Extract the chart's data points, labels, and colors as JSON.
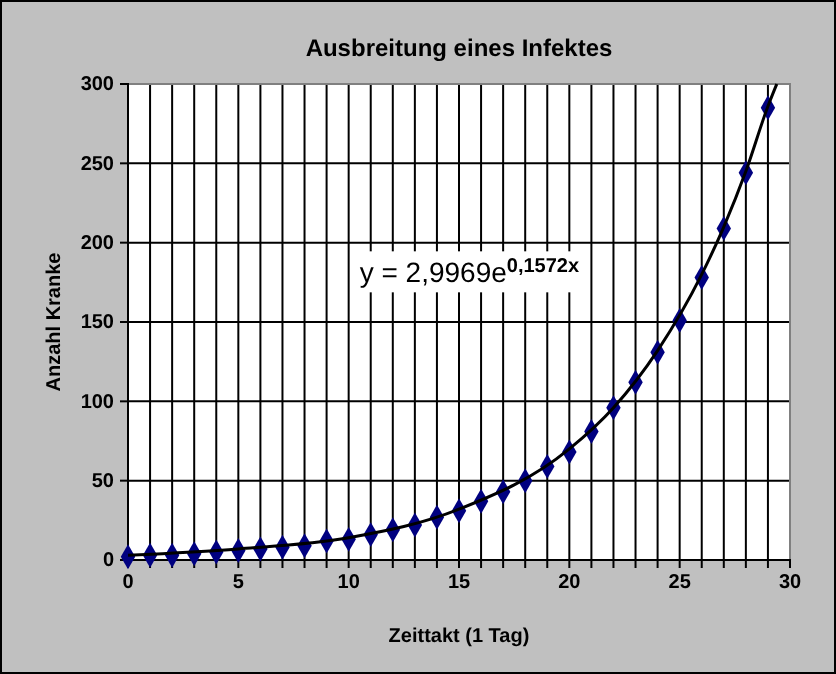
{
  "chart_data": {
    "type": "scatter",
    "title": "Ausbreitung eines Infektes",
    "xlabel": "Zeittakt (1 Tag)",
    "ylabel": "Anzahl Kranke",
    "series": [
      {
        "color": "#000080",
        "marker": "diamond",
        "x": [
          0,
          1,
          2,
          3,
          4,
          5,
          6,
          7,
          8,
          9,
          10,
          11,
          12,
          13,
          14,
          15,
          16,
          17,
          18,
          19,
          20,
          21,
          22,
          23,
          24,
          25,
          26,
          27,
          28,
          29
        ],
        "values": [
          2,
          3,
          3,
          4,
          5,
          6,
          7,
          8,
          9,
          12,
          13,
          16,
          19,
          22,
          27,
          31,
          37,
          43,
          50,
          59,
          68,
          81,
          96,
          112,
          131,
          151,
          178,
          209,
          244,
          285
        ]
      },
      {
        "type": "line",
        "color": "#000000",
        "marker": "none",
        "line_style": "solid",
        "x": [
          0,
          5,
          10,
          15,
          20,
          22,
          24,
          26,
          27,
          28,
          29,
          29.4
        ],
        "values": [
          3,
          7,
          14,
          32,
          70,
          96,
          132,
          180,
          210,
          245,
          286,
          300
        ]
      }
    ],
    "annotations": [
      "y = 2,9969e$^{0,1572x}$"
    ],
    "xlim": [
      0,
      30
    ],
    "ylim": [
      0,
      300
    ],
    "xticks": [
      0,
      {
        "value": 1,
        "label": null
      },
      {
        "value": 2,
        "label": null
      },
      {
        "value": 3,
        "label": null
      },
      {
        "value": 4,
        "label": null
      },
      5,
      {
        "value": 6,
        "label": null
      },
      {
        "value": 7,
        "label": null
      },
      {
        "value": 8,
        "label": null
      },
      {
        "value": 9,
        "label": null
      },
      10,
      {
        "value": 11,
        "label": null
      },
      {
        "value": 12,
        "label": null
      },
      {
        "value": 13,
        "label": null
      },
      {
        "value": 14,
        "label": null
      },
      15,
      {
        "value": 16,
        "label": null
      },
      {
        "value": 17,
        "label": null
      },
      {
        "value": 18,
        "label": null
      },
      {
        "value": 19,
        "label": null
      },
      20,
      {
        "value": 21,
        "label": null
      },
      {
        "value": 22,
        "label": null
      },
      {
        "value": 23,
        "label": null
      },
      {
        "value": 24,
        "label": null
      },
      25,
      {
        "value": 26,
        "label": null
      },
      {
        "value": 27,
        "label": null
      },
      {
        "value": 28,
        "label": null
      },
      {
        "value": 29,
        "label": null
      },
      30
    ],
    "yticks": [
      0,
      50,
      100,
      150,
      200,
      250,
      300
    ],
    "grid": true
  }
}
